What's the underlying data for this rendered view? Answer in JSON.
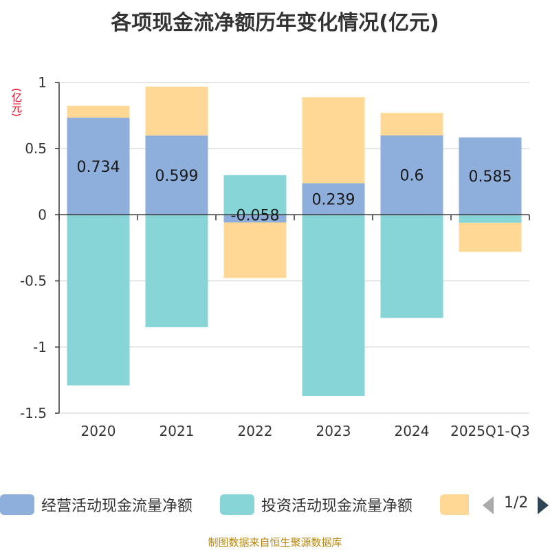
{
  "title": "各项现金流净额历年变化情况(亿元)",
  "unit_label": "(亿元)",
  "source": "制图数据来自恒生聚源数据库",
  "legend": {
    "items": [
      {
        "label": "经营活动现金流量净额",
        "color": "#8eaedb"
      },
      {
        "label": "投资活动现金流量净额",
        "color": "#88d5d8"
      },
      {
        "label": "",
        "color": "#ffd896"
      }
    ],
    "page": "1/2"
  },
  "chart_data": {
    "type": "bar",
    "stacked": true,
    "categories": [
      "2020",
      "2021",
      "2022",
      "2023",
      "2024",
      "2025Q1-Q3"
    ],
    "ylim": [
      -1.5,
      1
    ],
    "yticks": [
      1,
      0.5,
      0,
      -0.5,
      -1,
      -1.5
    ],
    "ytick_labels": [
      "1",
      "0.5",
      "0",
      "-0.5",
      "-1",
      "-1.5"
    ],
    "series": [
      {
        "name": "经营活动现金流量净额",
        "color": "#8eaedb",
        "values": [
          0.734,
          0.599,
          -0.058,
          0.239,
          0.6,
          0.585
        ],
        "labels": [
          "0.734",
          "0.599",
          "-0.058",
          "0.239",
          "0.6",
          "0.585"
        ]
      },
      {
        "name": "投资活动现金流量净额",
        "color": "#88d5d8",
        "values": [
          -1.29,
          -0.85,
          0.3,
          -1.37,
          -0.78,
          -0.06
        ]
      },
      {
        "name": "",
        "color": "#ffd896",
        "values": [
          0.09,
          0.37,
          -0.42,
          0.65,
          0.17,
          -0.22
        ]
      }
    ]
  }
}
